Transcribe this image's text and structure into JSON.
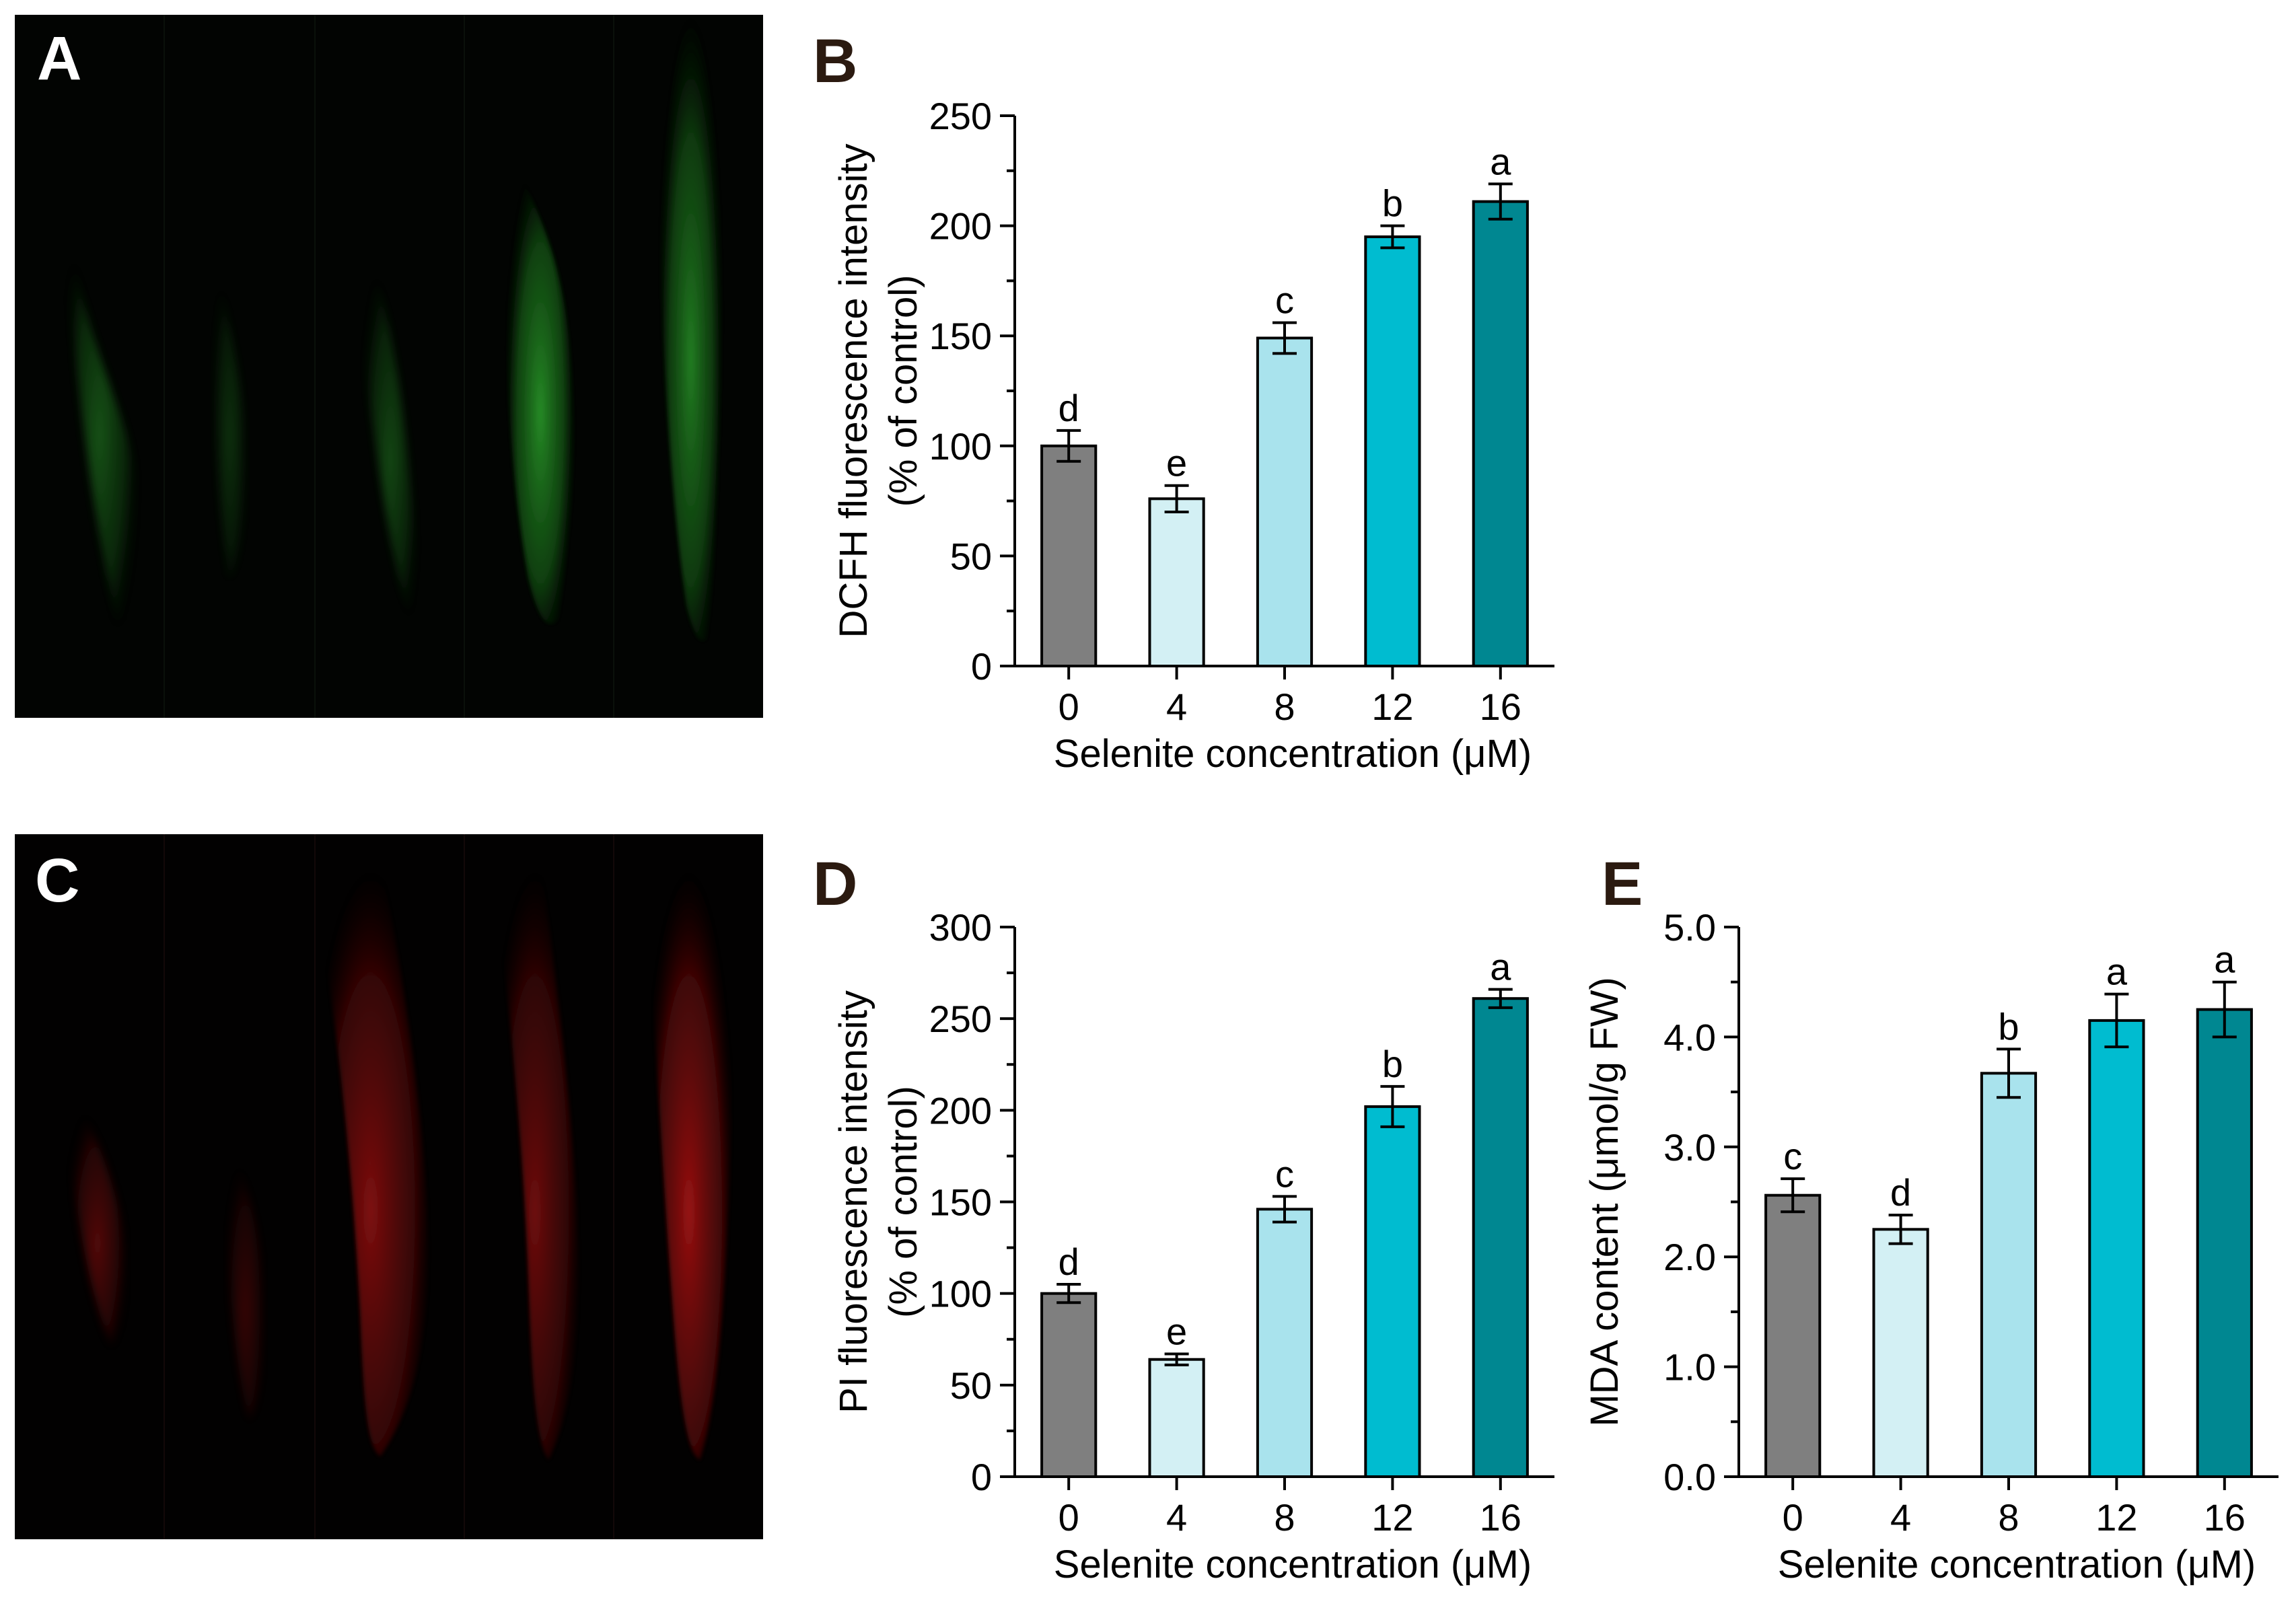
{
  "panels": {
    "A": {
      "letter": "A"
    },
    "B": {
      "letter": "B"
    },
    "C": {
      "letter": "C"
    },
    "D": {
      "letter": "D"
    },
    "E": {
      "letter": "E"
    }
  },
  "colors": {
    "bar_0": "#7f7f7f",
    "bar_4": "#d3f0f4",
    "bar_8": "#a9e3ed",
    "bar_12": "#00bcd0",
    "bar_16": "#008791",
    "green_fluorescence": "#1f8a1f",
    "red_fluorescence": "#a81010"
  },
  "chart_data": [
    {
      "id": "B",
      "type": "bar",
      "title": "",
      "xlabel": "Selenite concentration (μM)",
      "ylabel": [
        "DCFH fluorescence intensity",
        "(% of control)"
      ],
      "categories": [
        "0",
        "4",
        "8",
        "12",
        "16"
      ],
      "values": [
        100,
        76,
        149,
        195,
        211
      ],
      "errors": [
        7,
        6,
        7,
        5,
        8
      ],
      "letters": [
        "d",
        "e",
        "c",
        "b",
        "a"
      ],
      "ylim": [
        0,
        250
      ],
      "yticks": [
        0,
        50,
        100,
        150,
        200,
        250
      ],
      "ytick_labels": [
        "0",
        "50",
        "100",
        "150",
        "200",
        "250"
      ]
    },
    {
      "id": "D",
      "type": "bar",
      "title": "",
      "xlabel": "Selenite concentration (μM)",
      "ylabel": [
        "PI fluorescence intensity",
        "(% of control)"
      ],
      "categories": [
        "0",
        "4",
        "8",
        "12",
        "16"
      ],
      "values": [
        100,
        64,
        146,
        202,
        261
      ],
      "errors": [
        5,
        3,
        7,
        11,
        5
      ],
      "letters": [
        "d",
        "e",
        "c",
        "b",
        "a"
      ],
      "ylim": [
        0,
        300
      ],
      "yticks": [
        0,
        50,
        100,
        150,
        200,
        250,
        300
      ],
      "ytick_labels": [
        "0",
        "50",
        "100",
        "150",
        "200",
        "250",
        "300"
      ]
    },
    {
      "id": "E",
      "type": "bar",
      "title": "",
      "xlabel": "Selenite concentration (μM)",
      "ylabel": [
        "MDA content (μmol/g FW)"
      ],
      "categories": [
        "0",
        "4",
        "8",
        "12",
        "16"
      ],
      "values": [
        2.56,
        2.25,
        3.67,
        4.15,
        4.25
      ],
      "errors": [
        0.15,
        0.13,
        0.22,
        0.24,
        0.25
      ],
      "letters": [
        "c",
        "d",
        "b",
        "a",
        "a"
      ],
      "ylim": [
        0,
        5.0
      ],
      "yticks": [
        0,
        1,
        2,
        3,
        4,
        5
      ],
      "ytick_labels": [
        "0.0",
        "1.0",
        "2.0",
        "3.0",
        "4.0",
        "5.0"
      ]
    }
  ],
  "images": {
    "A": {
      "root_intensities": [
        0.55,
        0.32,
        0.48,
        0.95,
        0.85
      ]
    },
    "C": {
      "root_intensities": [
        0.5,
        0.32,
        0.75,
        0.65,
        0.9
      ]
    }
  }
}
